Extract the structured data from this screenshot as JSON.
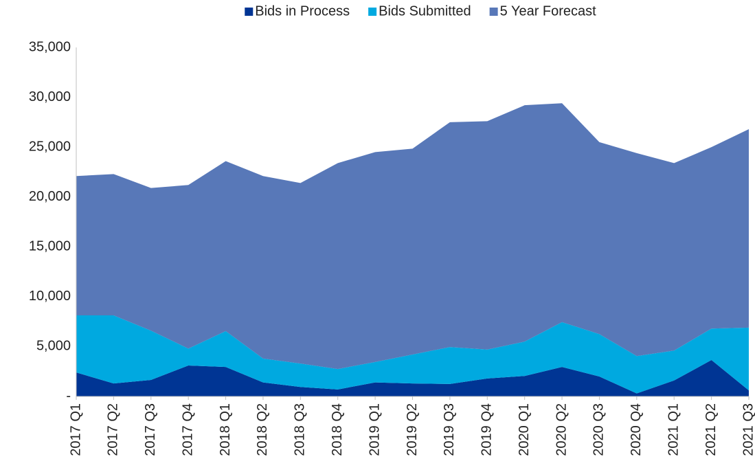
{
  "chart_data": {
    "type": "stacked_area",
    "categories": [
      "2017 Q1",
      "2017 Q2",
      "2017 Q3",
      "2017 Q4",
      "2018 Q1",
      "2018 Q2",
      "2018 Q3",
      "2018 Q4",
      "2019 Q1",
      "2019 Q2",
      "2019 Q3",
      "2019 Q4",
      "2020 Q1",
      "2020 Q2",
      "2020 Q3",
      "2020 Q4",
      "2021 Q1",
      "2021 Q2",
      "2021 Q3"
    ],
    "series": [
      {
        "name": "Bids in Process",
        "color": "#003594",
        "values": [
          2400,
          1300,
          1650,
          3100,
          2950,
          1400,
          950,
          700,
          1400,
          1300,
          1250,
          1800,
          2050,
          2950,
          2000,
          300,
          1600,
          3650,
          600
        ]
      },
      {
        "name": "Bids Submitted",
        "color": "#00a9e0",
        "values": [
          5730,
          6830,
          4950,
          1700,
          3600,
          2400,
          2350,
          2050,
          2050,
          2900,
          3700,
          2900,
          3450,
          4500,
          4250,
          3750,
          3000,
          3150,
          6300
        ]
      },
      {
        "name": "5 Year Forecast",
        "color": "#5878b8",
        "values": [
          13970,
          14170,
          14300,
          16400,
          17050,
          18300,
          18100,
          20650,
          21050,
          20650,
          22550,
          22900,
          23700,
          21950,
          19250,
          20350,
          18800,
          18200,
          19900
        ]
      }
    ],
    "ylim": [
      0,
      35000
    ],
    "yticks": [
      {
        "value": 0,
        "label": "-"
      },
      {
        "value": 5000,
        "label": "5,000"
      },
      {
        "value": 10000,
        "label": "10,000"
      },
      {
        "value": 15000,
        "label": "15,000"
      },
      {
        "value": 20000,
        "label": "20,000"
      },
      {
        "value": 25000,
        "label": "25,000"
      },
      {
        "value": 30000,
        "label": "30,000"
      },
      {
        "value": 35000,
        "label": "35,000"
      }
    ],
    "legend": "top"
  }
}
